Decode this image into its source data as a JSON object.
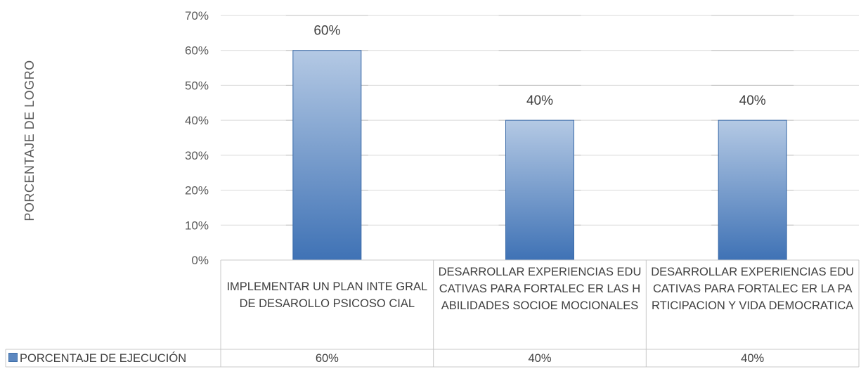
{
  "chart_data": {
    "type": "bar",
    "ylabel": "PORCENTAJE DE LOGRO",
    "xlabel": "",
    "ylim": [
      0,
      70
    ],
    "yticks": [
      "0%",
      "10%",
      "20%",
      "30%",
      "40%",
      "50%",
      "60%",
      "70%"
    ],
    "categories": [
      "IMPLEMENTAR UN PLAN INTE GRALDE DESAROLLO PSICOSO CIAL",
      "DESARROLLAR EXPERIENCIAS EDUCATIVAS PARA FORTALEC ER LAS HABILIDADES SOCIOE MOCIONALES",
      "DESARROLLAR EXPERIENCIAS EDUCATIVAS PARA FORTALEC ER LA PARTICIPACION Y VIDA DEMOCRATICA"
    ],
    "series": [
      {
        "name": "PORCENTAJE DE EJECUCIÓN",
        "values": [
          60,
          40,
          40
        ],
        "labels": [
          "60%",
          "40%",
          "40%"
        ]
      }
    ],
    "grid": true,
    "legend": "data-table",
    "bar_color": "#4f81bd"
  }
}
